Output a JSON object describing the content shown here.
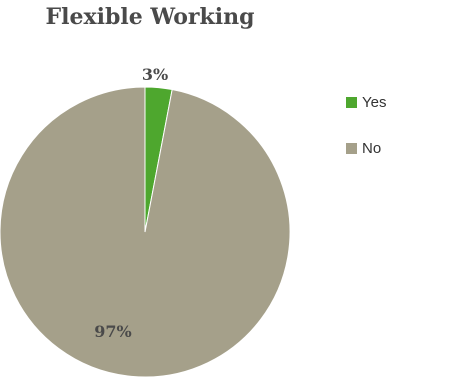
{
  "chart_data": {
    "type": "pie",
    "title": "Flexible Working",
    "slices": [
      {
        "name": "Yes",
        "value": 3,
        "label": "3%",
        "color": "#4ea72e"
      },
      {
        "name": "No",
        "value": 97,
        "label": "97%",
        "color": "#a5a08a"
      }
    ],
    "legend_position": "right"
  }
}
